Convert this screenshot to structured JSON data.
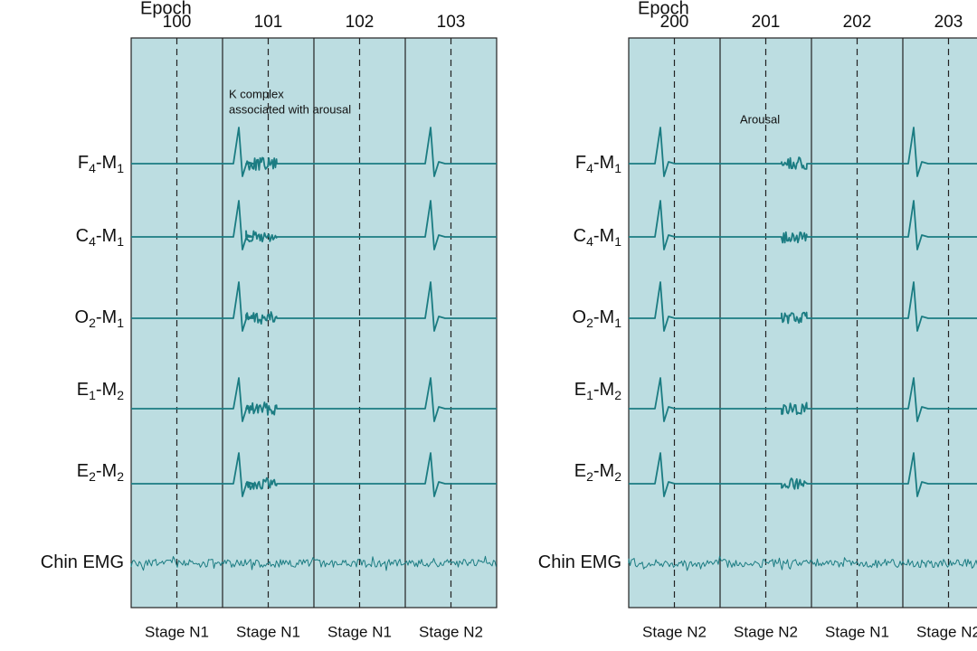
{
  "panels": [
    {
      "epoch_label": "Epoch",
      "epochs": [
        "100",
        "101",
        "102",
        "103"
      ],
      "stages": [
        "Stage N1",
        "Stage N1",
        "Stage N1",
        "Stage N2"
      ],
      "annotation": [
        "K complex",
        "associated with arousal"
      ],
      "channels": [
        {
          "parts": [
            "F",
            "4",
            "-M",
            "1"
          ]
        },
        {
          "parts": [
            "C",
            "4",
            "-M",
            "1"
          ]
        },
        {
          "parts": [
            "O",
            "2",
            "-M",
            "1"
          ]
        },
        {
          "parts": [
            "E",
            "1",
            "-M",
            "2"
          ]
        },
        {
          "parts": [
            "E",
            "2",
            "-M",
            "2"
          ]
        },
        {
          "parts": [
            "Chin EMG"
          ]
        }
      ]
    },
    {
      "epoch_label": "Epoch",
      "epochs": [
        "200",
        "201",
        "202",
        "203"
      ],
      "stages": [
        "Stage N2",
        "Stage N2",
        "Stage N1",
        "Stage N2"
      ],
      "annotation": [
        "Arousal"
      ],
      "channels": [
        {
          "parts": [
            "F",
            "4",
            "-M",
            "1"
          ]
        },
        {
          "parts": [
            "C",
            "4",
            "-M",
            "1"
          ]
        },
        {
          "parts": [
            "O",
            "2",
            "-M",
            "1"
          ]
        },
        {
          "parts": [
            "E",
            "1",
            "-M",
            "2"
          ]
        },
        {
          "parts": [
            "E",
            "2",
            "-M",
            "2"
          ]
        },
        {
          "parts": [
            "Chin EMG"
          ]
        }
      ]
    }
  ]
}
